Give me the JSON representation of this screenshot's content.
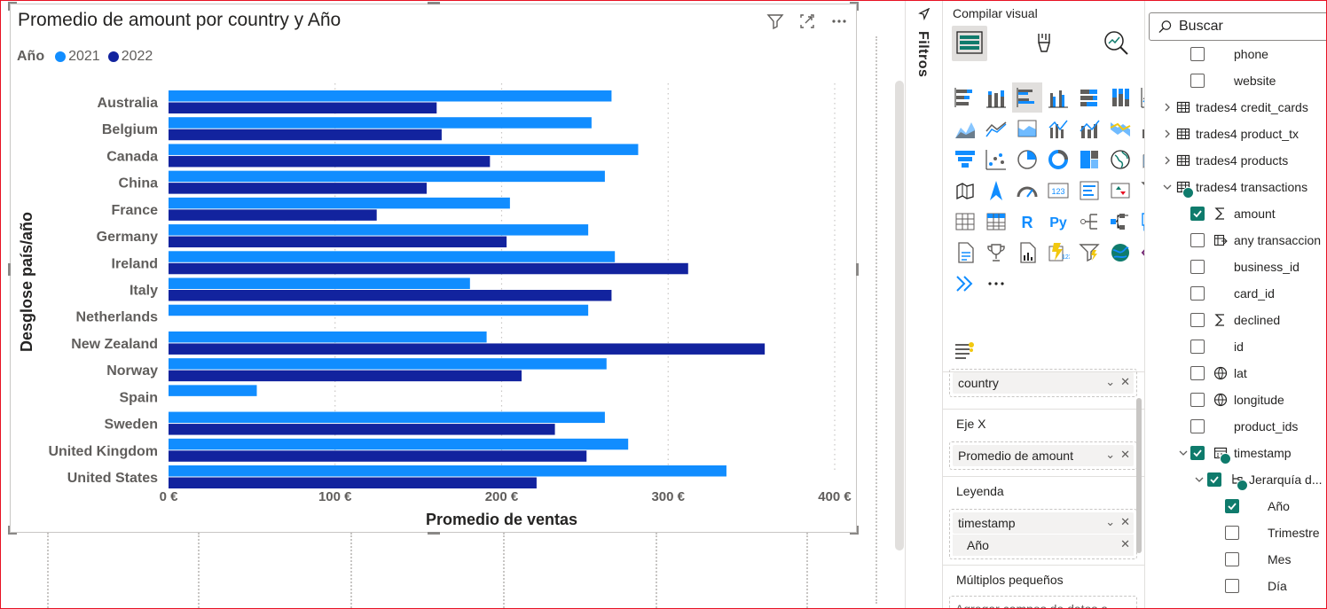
{
  "visual": {
    "title": "Promedio de amount por country y Año"
  },
  "chart_data": {
    "type": "bar",
    "orientation": "horizontal",
    "legend": {
      "title": "Año",
      "position": "top-left",
      "entries": [
        {
          "label": "2021",
          "color": "#118dff"
        },
        {
          "label": "2022",
          "color": "#12239e"
        }
      ]
    },
    "xlabel": "Promedio de ventas",
    "ylabel": "Desglose país/año",
    "xlim": [
      0,
      400
    ],
    "xticks": [
      0,
      100,
      200,
      300,
      400
    ],
    "xtick_labels": [
      "0 €",
      "100 €",
      "200 €",
      "300 €",
      "400 €"
    ],
    "grid": "vertical dotted",
    "categories": [
      "Australia",
      "Belgium",
      "Canada",
      "China",
      "France",
      "Germany",
      "Ireland",
      "Italy",
      "Netherlands",
      "New Zealand",
      "Norway",
      "Spain",
      "Sweden",
      "United Kingdom",
      "United States"
    ],
    "series": [
      {
        "name": "2021",
        "color": "#118dff",
        "values": [
          266,
          254,
          282,
          262,
          205,
          252,
          268,
          181,
          252,
          191,
          263,
          53,
          262,
          276,
          335
        ]
      },
      {
        "name": "2022",
        "color": "#12239e",
        "values": [
          161,
          164,
          193,
          155,
          125,
          203,
          312,
          266,
          null,
          358,
          212,
          null,
          232,
          251,
          221
        ]
      }
    ]
  },
  "filters_pane": {
    "label": "Filtros"
  },
  "build_pane": {
    "title": "Compilar visual",
    "visual_types": [
      "stacked-bar",
      "stacked-column",
      "clustered-bar",
      "clustered-column",
      "100-stacked-bar",
      "100-stacked-column",
      "line",
      "area",
      "stacked-area",
      "100-stacked-area",
      "line-clustered-column",
      "line-stacked-column",
      "ribbon",
      "waterfall",
      "funnel",
      "scatter",
      "pie",
      "donut",
      "treemap",
      "map",
      "filled-map",
      "shape-map",
      "azure-map",
      "gauge",
      "card",
      "multi-row-card",
      "kpi",
      "slicer",
      "table",
      "matrix",
      "r-visual",
      "python-visual",
      "key-influencers",
      "decomposition-tree",
      "qa",
      "smart-narrative",
      "metrics",
      "paginated-report",
      "power-apps",
      "power-automate",
      "arcgis-map",
      "power-apps-2",
      "get-more-visuals",
      "more-options"
    ],
    "more_label": "···",
    "wells": {
      "y_axis": {
        "field": "country"
      },
      "x_axis": {
        "label": "Eje X",
        "field": "Promedio de amount"
      },
      "legend": {
        "label": "Leyenda",
        "field": "timestamp",
        "subfield": "Año"
      },
      "small_multiples": {
        "label": "Múltiplos pequeños",
        "placeholder": "Agregar campos de datos a"
      }
    }
  },
  "data_pane": {
    "search_placeholder": "Buscar",
    "items": [
      {
        "label": "phone",
        "type": "field",
        "checked": false
      },
      {
        "label": "website",
        "type": "field",
        "checked": false
      },
      {
        "label": "trades4 credit_cards",
        "type": "table",
        "expanded": false
      },
      {
        "label": "trades4 product_tx",
        "type": "table",
        "expanded": false
      },
      {
        "label": "trades4 products",
        "type": "table",
        "expanded": false
      },
      {
        "label": "trades4 transactions",
        "type": "table",
        "expanded": true,
        "in_use": true
      },
      {
        "label": "amount",
        "type": "measure",
        "checked": true
      },
      {
        "label": "any transaccion",
        "type": "calc",
        "checked": false
      },
      {
        "label": "business_id",
        "type": "field",
        "checked": false
      },
      {
        "label": "card_id",
        "type": "field",
        "checked": false
      },
      {
        "label": "declined",
        "type": "measure",
        "checked": false
      },
      {
        "label": "id",
        "type": "field",
        "checked": false
      },
      {
        "label": "lat",
        "type": "geo",
        "checked": false
      },
      {
        "label": "longitude",
        "type": "geo",
        "checked": false
      },
      {
        "label": "product_ids",
        "type": "field",
        "checked": false
      },
      {
        "label": "timestamp",
        "type": "date",
        "checked": true,
        "expanded": true
      },
      {
        "label": "Jerarquía d...",
        "type": "hierarchy",
        "checked": true,
        "expanded": true
      },
      {
        "label": "Año",
        "type": "level",
        "checked": true
      },
      {
        "label": "Trimestre",
        "type": "level",
        "checked": false
      },
      {
        "label": "Mes",
        "type": "level",
        "checked": false
      },
      {
        "label": "Día",
        "type": "level",
        "checked": false
      }
    ]
  }
}
